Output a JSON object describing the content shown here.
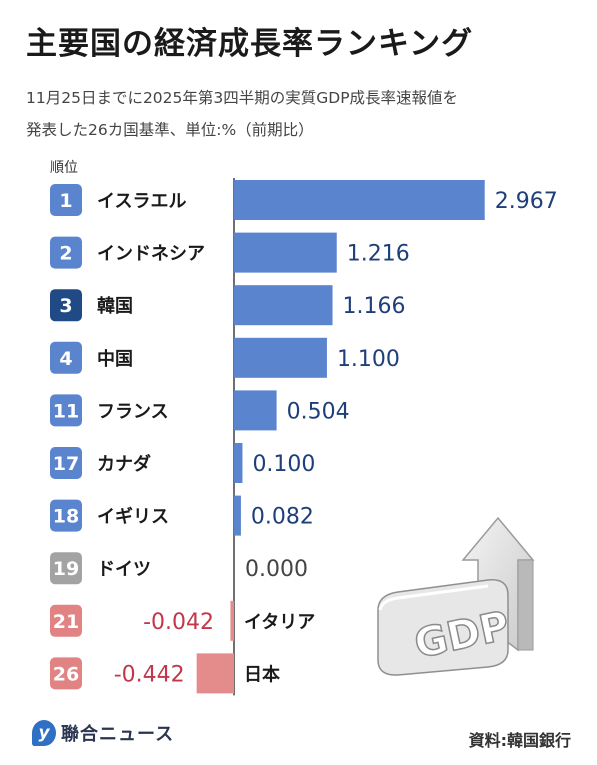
{
  "title": "主要国の経済成長率ランキング",
  "subtitle_line1": "11月25日までに2025年第3四半期の実質GDP成長率速報値を",
  "subtitle_line2": "発表した26カ国基準、単位:%（前期比）",
  "rank_header": "順位",
  "source": "資料:韓国銀行",
  "logo_text": "聯合ニュース",
  "logo_glyph": "y",
  "graphic_label": "GDP",
  "colors": {
    "bar_positive": "#5b84cf",
    "bar_negative": "#e48b8b",
    "badge_blue": "#5b84cf",
    "badge_highlight": "#1f4a86",
    "badge_gray": "#a3a3a3",
    "badge_red": "#e28383",
    "text_value_blue": "#1e3f7a",
    "text_value_red": "#c2374a",
    "text_value_zero": "#444444"
  },
  "chart_data": {
    "type": "bar",
    "orientation": "horizontal",
    "categories": [
      "イスラエル",
      "インドネシア",
      "韓国",
      "中国",
      "フランス",
      "カナダ",
      "イギリス",
      "ドイツ",
      "イタリア",
      "日本"
    ],
    "ranks": [
      "1",
      "2",
      "3",
      "4",
      "11",
      "17",
      "18",
      "19",
      "21",
      "26"
    ],
    "values": [
      2.967,
      1.216,
      1.166,
      1.1,
      0.504,
      0.1,
      0.082,
      0.0,
      -0.042,
      -0.442
    ],
    "value_labels": [
      "2.967",
      "1.216",
      "1.166",
      "1.100",
      "0.504",
      "0.100",
      "0.082",
      "0.000",
      "-0.042",
      "-0.442"
    ],
    "highlight": "韓国",
    "unit": "%"
  }
}
